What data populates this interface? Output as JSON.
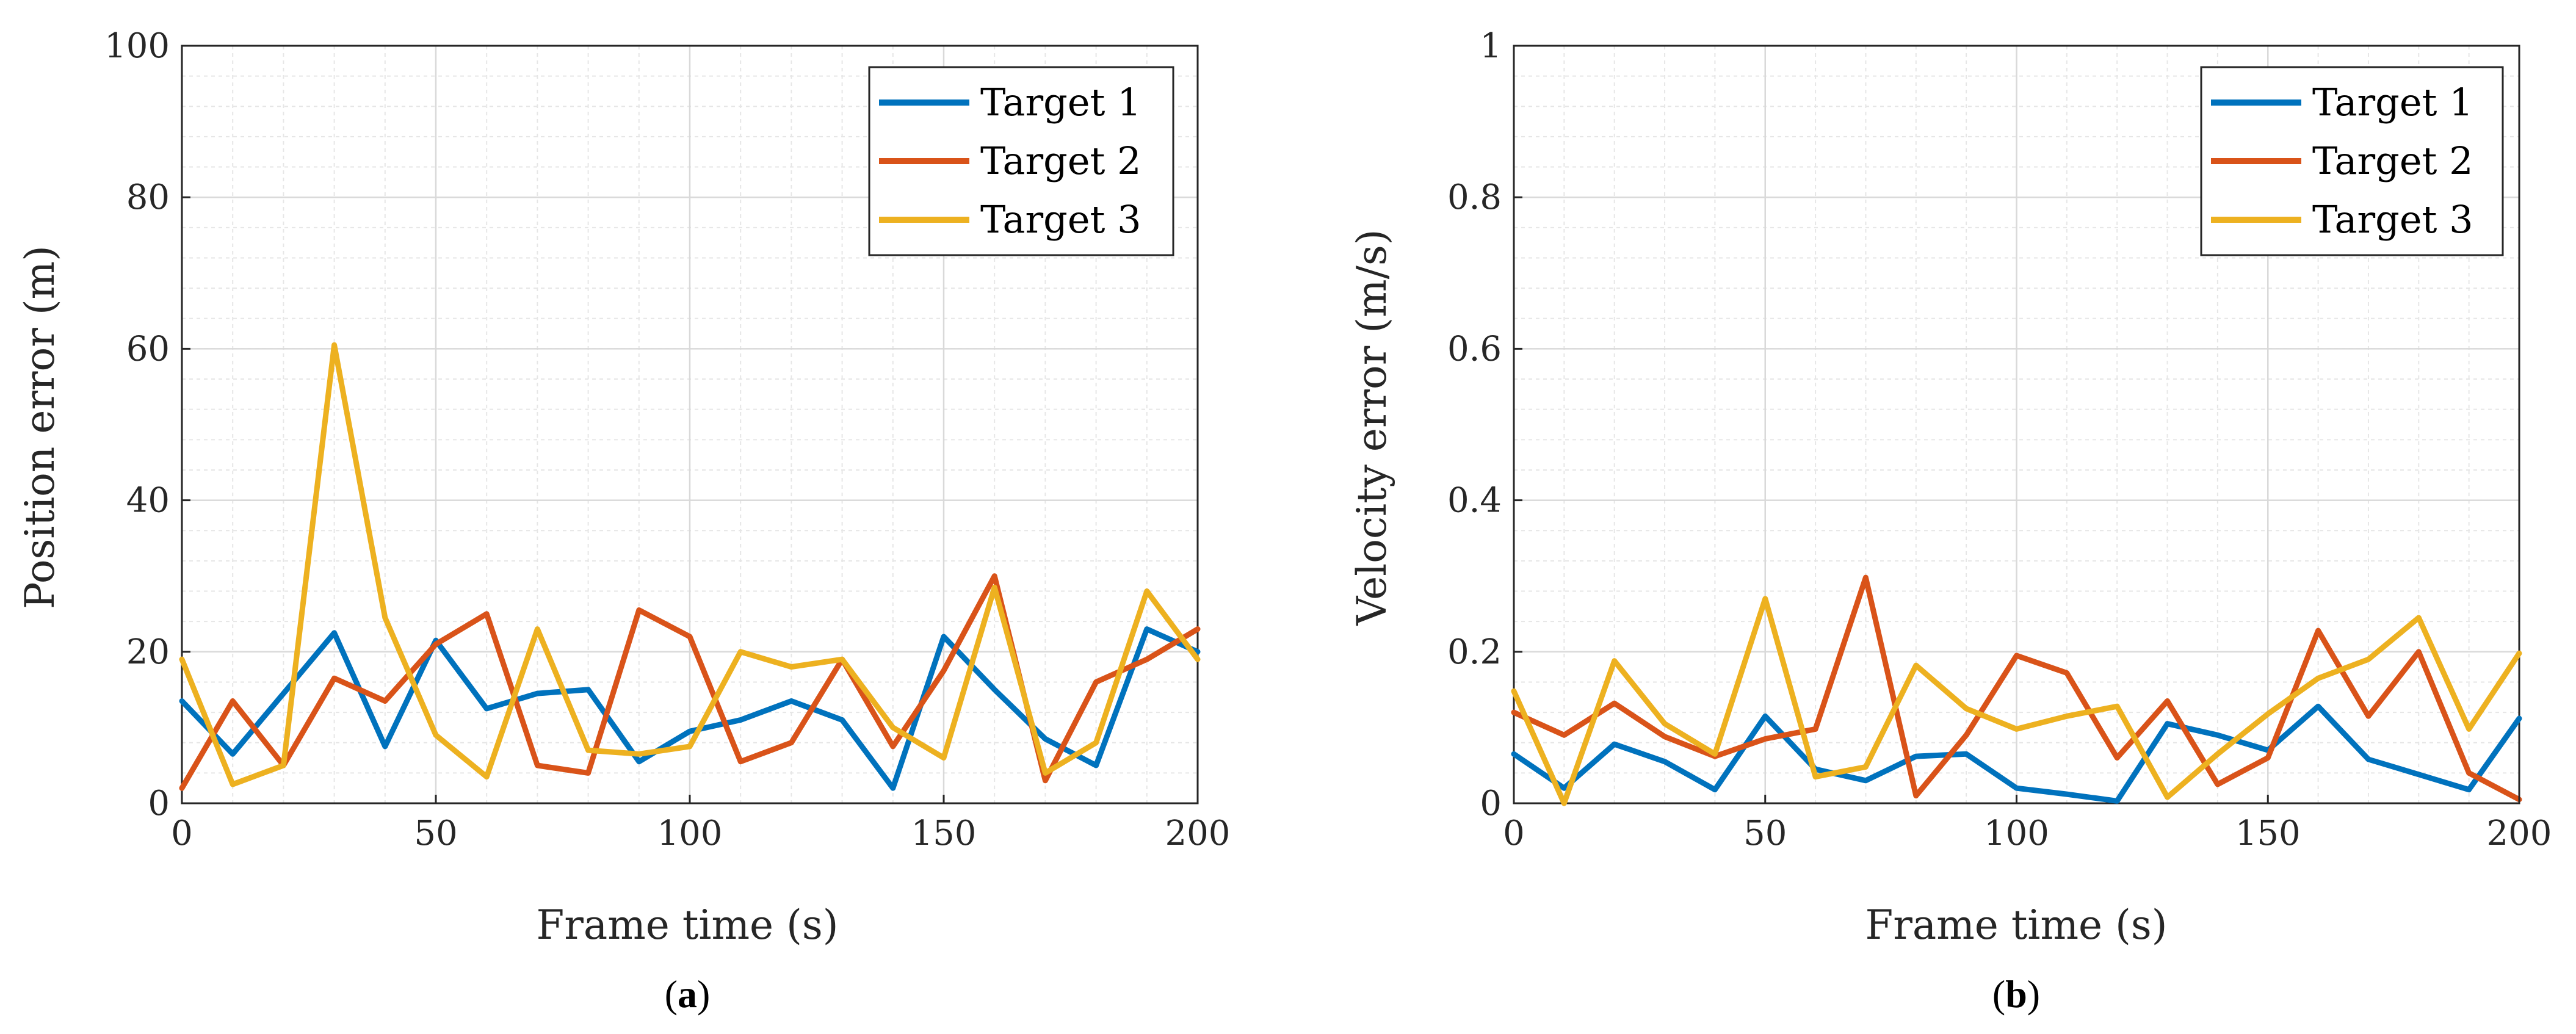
{
  "chart_data": [
    {
      "type": "line",
      "panel_label": "a",
      "xlabel": "Frame time (s)",
      "ylabel": "Position error (m)",
      "xlim": [
        0,
        200
      ],
      "ylim": [
        0,
        100
      ],
      "xticks": [
        "0",
        "50",
        "100",
        "150",
        "200"
      ],
      "yticks": [
        "0",
        "20",
        "40",
        "60",
        "80",
        "100"
      ],
      "grid": true,
      "legend": "top-right",
      "x": [
        0,
        10,
        20,
        30,
        40,
        50,
        60,
        70,
        80,
        90,
        100,
        110,
        120,
        130,
        140,
        150,
        160,
        170,
        180,
        190,
        200
      ],
      "series": [
        {
          "name": "Target 1",
          "color": "#0072BD",
          "values": [
            13.5,
            6.5,
            14.5,
            22.5,
            7.5,
            21.5,
            12.5,
            14.5,
            15,
            5.5,
            9.5,
            11,
            13.5,
            11,
            2,
            22,
            15,
            8.5,
            5,
            23,
            20
          ]
        },
        {
          "name": "Target 2",
          "color": "#D95319",
          "values": [
            2,
            13.5,
            5,
            16.5,
            13.5,
            21,
            25,
            5,
            4,
            25.5,
            22,
            5.5,
            8,
            19,
            7.5,
            17.5,
            30,
            3,
            16,
            19,
            23
          ]
        },
        {
          "name": "Target 3",
          "color": "#EDB120",
          "values": [
            19,
            2.5,
            5,
            60.5,
            24.5,
            9,
            3.5,
            23,
            7,
            6.5,
            7.5,
            20,
            18,
            19,
            10,
            6,
            28.5,
            4,
            8,
            28,
            19
          ]
        }
      ]
    },
    {
      "type": "line",
      "panel_label": "b",
      "xlabel": "Frame time (s)",
      "ylabel": "Velocity error (m/s)",
      "xlim": [
        0,
        200
      ],
      "ylim": [
        0,
        1
      ],
      "xticks": [
        "0",
        "50",
        "100",
        "150",
        "200"
      ],
      "yticks": [
        "0",
        "0.2",
        "0.4",
        "0.6",
        "0.8",
        "1"
      ],
      "grid": true,
      "legend": "top-right",
      "x": [
        0,
        10,
        20,
        30,
        40,
        50,
        60,
        70,
        80,
        90,
        100,
        110,
        120,
        130,
        140,
        150,
        160,
        170,
        180,
        190,
        200
      ],
      "series": [
        {
          "name": "Target 1",
          "color": "#0072BD",
          "values": [
            0.065,
            0.02,
            0.078,
            0.055,
            0.018,
            0.115,
            0.045,
            0.03,
            0.062,
            0.065,
            0.02,
            0.012,
            0.003,
            0.105,
            0.09,
            0.07,
            0.128,
            0.058,
            0.038,
            0.018,
            0.112
          ]
        },
        {
          "name": "Target 2",
          "color": "#D95319",
          "values": [
            0.12,
            0.09,
            0.132,
            0.088,
            0.062,
            0.085,
            0.098,
            0.298,
            0.01,
            0.09,
            0.195,
            0.172,
            0.06,
            0.135,
            0.025,
            0.06,
            0.228,
            0.115,
            0.2,
            0.04,
            0.005
          ]
        },
        {
          "name": "Target 3",
          "color": "#EDB120",
          "values": [
            0.148,
            0.0,
            0.188,
            0.105,
            0.065,
            0.27,
            0.035,
            0.048,
            0.182,
            0.125,
            0.098,
            0.115,
            0.128,
            0.008,
            0.065,
            0.118,
            0.165,
            0.19,
            0.245,
            0.098,
            0.198
          ]
        }
      ]
    }
  ]
}
